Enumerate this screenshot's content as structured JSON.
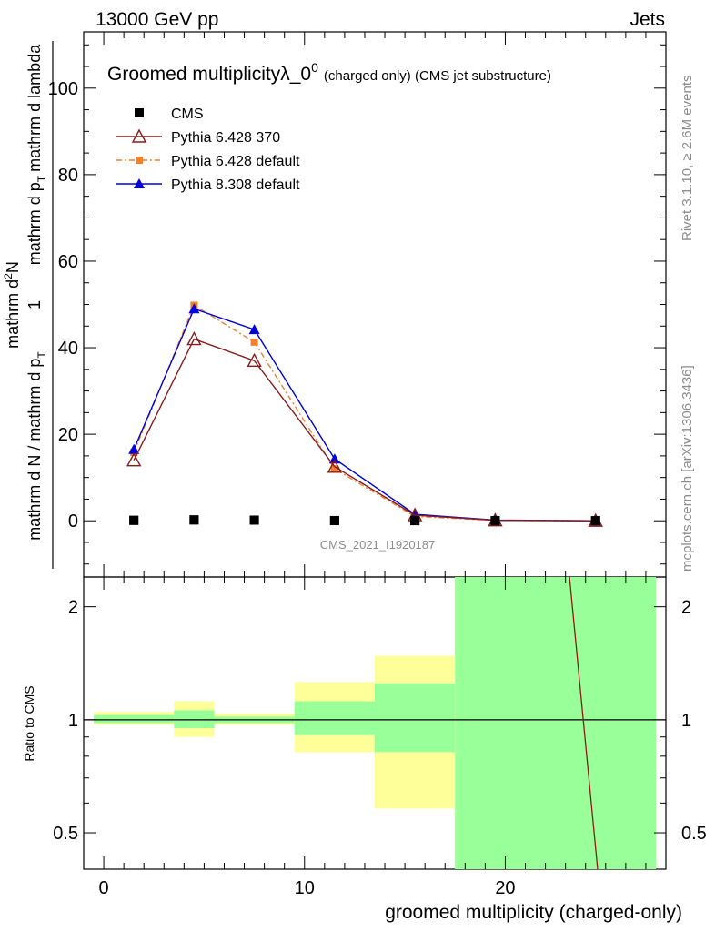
{
  "header": {
    "left": "13000 GeV pp",
    "right": "Jets"
  },
  "side_labels": {
    "rivet": "Rivet 3.1.10, ≥ 2.6M events",
    "mcplots": "mcplots.cern.ch [arXiv:1306.3436]"
  },
  "main_plot": {
    "title_main": "Groomed multiplicityλ_0",
    "title_sup": "0",
    "title_sub": "(charged only) (CMS jet substructure)",
    "ylabel_denominator": "mathrm d N / mathrm d p",
    "ylabel_den_sub": "T",
    "ylabel_den_rest": "mathrm d p",
    "ylabel_den_sub2": "T",
    "ylabel_den_end": "mathrm d lambda",
    "ylabel_numerator": "mathrm d",
    "ylabel_numerator_sup": "2",
    "ylabel_numerator_end": "N",
    "ylabel_one": "1",
    "watermark": "CMS_2021_I1920187",
    "yticks": [
      "0",
      "20",
      "40",
      "60",
      "80",
      "100"
    ]
  },
  "ratio_plot": {
    "ylabel": "Ratio to CMS",
    "yticks": [
      "0.5",
      "1",
      "2"
    ],
    "xticks": [
      "0",
      "10",
      "20"
    ],
    "xlabel": "groomed multiplicity (charged-only)"
  },
  "legend": [
    {
      "name": "CMS",
      "color": "#000000",
      "marker": "square"
    },
    {
      "name": "Pythia 6.428 370",
      "color": "#8b1a1a",
      "marker": "open-triangle"
    },
    {
      "name": "Pythia 6.428 default",
      "color": "#f08030",
      "marker": "small-square"
    },
    {
      "name": "Pythia 8.308 default",
      "color": "#0000dd",
      "marker": "triangle"
    }
  ],
  "chart_data": {
    "type": "line",
    "xlabel": "groomed multiplicity (charged-only)",
    "xlim": [
      -1,
      28
    ],
    "ylim": [
      -13,
      113
    ],
    "ratio_ylim": [
      0.4,
      2.4
    ],
    "ratio_ylog": true,
    "series": [
      {
        "name": "CMS",
        "x": [
          1.5,
          4.5,
          7.5,
          11.5,
          15.5,
          19.5,
          24.5
        ],
        "y": [
          0.1,
          0.2,
          0.15,
          0.05,
          0.03,
          0.01,
          0.005
        ]
      },
      {
        "name": "Pythia 6.428 370",
        "x": [
          1.5,
          4.5,
          7.5,
          11.5,
          15.5,
          19.5,
          24.5
        ],
        "y": [
          14.0,
          42.0,
          37.0,
          12.5,
          1.3,
          0.1,
          0.0
        ]
      },
      {
        "name": "Pythia 6.428 default",
        "x": [
          1.5,
          4.5,
          7.5,
          11.5,
          15.5,
          19.5,
          24.5
        ],
        "y": [
          15.8,
          49.8,
          41.3,
          12.0,
          1.0,
          0.1,
          0.0
        ]
      },
      {
        "name": "Pythia 8.308 default",
        "x": [
          1.5,
          4.5,
          7.5,
          11.5,
          15.5,
          19.5,
          24.5
        ],
        "y": [
          16.5,
          49.0,
          44.2,
          14.3,
          1.5,
          0.15,
          0.0
        ]
      }
    ],
    "ratio_bands": [
      {
        "x0": -0.5,
        "x1": 3.5,
        "green": [
          0.98,
          1.03
        ],
        "yellow": [
          0.97,
          1.05
        ]
      },
      {
        "x0": 3.5,
        "x1": 5.5,
        "green": [
          0.95,
          1.06
        ],
        "yellow": [
          0.9,
          1.12
        ]
      },
      {
        "x0": 5.5,
        "x1": 9.5,
        "green": [
          0.98,
          1.02
        ],
        "yellow": [
          0.97,
          1.04
        ]
      },
      {
        "x0": 9.5,
        "x1": 13.5,
        "green": [
          0.91,
          1.12
        ],
        "yellow": [
          0.82,
          1.26
        ]
      },
      {
        "x0": 13.5,
        "x1": 17.5,
        "green": [
          0.82,
          1.25
        ],
        "yellow": [
          0.58,
          1.48
        ]
      },
      {
        "x0": 17.5,
        "x1": 27.5,
        "green": [
          0.4,
          2.4
        ],
        "yellow": [
          0.4,
          2.4
        ]
      }
    ],
    "ratio_line": {
      "name": "Pythia 6.428 370",
      "x": [
        23.2,
        24.6
      ],
      "y": [
        2.4,
        0.4
      ]
    }
  }
}
